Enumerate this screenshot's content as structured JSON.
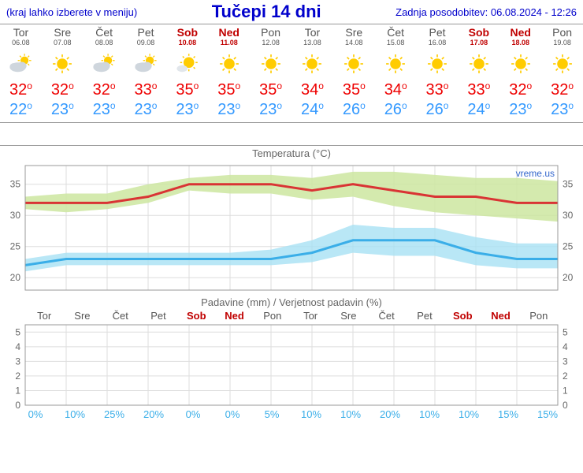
{
  "header": {
    "left": "(kraj lahko izberete v meniju)",
    "title": "Tučepi 14 dni",
    "right": "Zadnja posodobitev: 06.08.2024 - 12:26"
  },
  "days": [
    {
      "name": "Tor",
      "date": "06.08",
      "weekend": false,
      "icon": "partly",
      "high": 32,
      "low": 22
    },
    {
      "name": "Sre",
      "date": "07.08",
      "weekend": false,
      "icon": "sunny",
      "high": 32,
      "low": 23
    },
    {
      "name": "Čet",
      "date": "08.08",
      "weekend": false,
      "icon": "partly",
      "high": 32,
      "low": 23
    },
    {
      "name": "Pet",
      "date": "09.08",
      "weekend": false,
      "icon": "partly",
      "high": 33,
      "low": 23
    },
    {
      "name": "Sob",
      "date": "10.08",
      "weekend": true,
      "icon": "mostly-sunny",
      "high": 35,
      "low": 23
    },
    {
      "name": "Ned",
      "date": "11.08",
      "weekend": true,
      "icon": "sunny",
      "high": 35,
      "low": 23
    },
    {
      "name": "Pon",
      "date": "12.08",
      "weekend": false,
      "icon": "sunny",
      "high": 35,
      "low": 23
    },
    {
      "name": "Tor",
      "date": "13.08",
      "weekend": false,
      "icon": "sunny",
      "high": 34,
      "low": 24
    },
    {
      "name": "Sre",
      "date": "14.08",
      "weekend": false,
      "icon": "sunny",
      "high": 35,
      "low": 26
    },
    {
      "name": "Čet",
      "date": "15.08",
      "weekend": false,
      "icon": "sunny",
      "high": 34,
      "low": 26
    },
    {
      "name": "Pet",
      "date": "16.08",
      "weekend": false,
      "icon": "sunny",
      "high": 33,
      "low": 26
    },
    {
      "name": "Sob",
      "date": "17.08",
      "weekend": true,
      "icon": "sunny",
      "high": 33,
      "low": 24
    },
    {
      "name": "Ned",
      "date": "18.08",
      "weekend": true,
      "icon": "sunny",
      "high": 32,
      "low": 23
    },
    {
      "name": "Pon",
      "date": "19.08",
      "weekend": false,
      "icon": "sunny",
      "high": 32,
      "low": 23
    }
  ],
  "temp_chart": {
    "title": "Temperatura (°C)",
    "watermark": "vreme.us",
    "ymin": 18,
    "ymax": 38,
    "yticks": [
      20,
      25,
      30,
      35
    ],
    "grid_color": "#dddddd",
    "axis_color": "#999999",
    "bg_color": "#ffffff",
    "high_line_color": "#d93434",
    "low_line_color": "#3aaee8",
    "high_band_color": "#cde6a0",
    "low_band_color": "#a7e1f4",
    "line_width": 3,
    "high_series": [
      32,
      32,
      32,
      33,
      35,
      35,
      35,
      34,
      35,
      34,
      33,
      33,
      32,
      32
    ],
    "high_upper": [
      33,
      33.5,
      33.5,
      35,
      36,
      36.5,
      36.5,
      36,
      37,
      37,
      36.5,
      36,
      36,
      35.5
    ],
    "high_lower": [
      31,
      30.5,
      31,
      32,
      34,
      33.5,
      33.5,
      32.5,
      33,
      31.5,
      30.5,
      30,
      29.5,
      29
    ],
    "low_series": [
      22,
      23,
      23,
      23,
      23,
      23,
      23,
      24,
      26,
      26,
      26,
      24,
      23,
      23
    ],
    "low_upper": [
      23,
      24,
      24,
      24,
      24,
      24,
      24.5,
      26,
      28.5,
      28,
      28,
      26.5,
      25.5,
      25.5
    ],
    "low_lower": [
      21,
      22,
      22,
      22,
      22,
      22,
      22,
      22.5,
      24,
      23.5,
      23.5,
      22,
      21.5,
      21.5
    ]
  },
  "precip_chart": {
    "title": "Padavine (mm) / Verjetnost padavin (%)",
    "ymin": 0,
    "ymax": 5.5,
    "yticks": [
      0,
      1,
      2,
      3,
      4,
      5
    ],
    "grid_color": "#dddddd",
    "axis_color": "#999999",
    "pct_color": "#3aaee8",
    "pct": [
      "0%",
      "10%",
      "25%",
      "20%",
      "0%",
      "0%",
      "5%",
      "10%",
      "10%",
      "20%",
      "10%",
      "10%",
      "15%",
      "15%"
    ]
  }
}
